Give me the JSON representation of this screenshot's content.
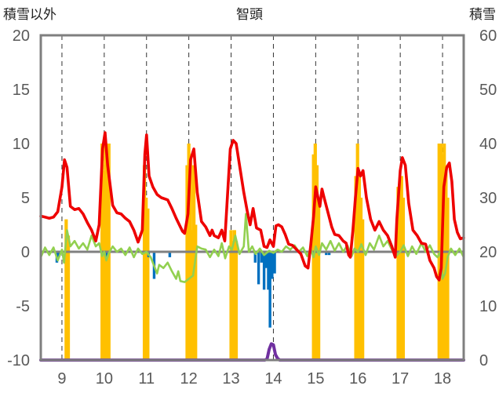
{
  "chart_data": {
    "type": "bar+line",
    "title": "智頭",
    "ylabel_left": "積雪以外",
    "ylabel_right": "積雪",
    "ylim_left": [
      -10,
      20
    ],
    "ylim_right": [
      0,
      60
    ],
    "yticks_left": [
      "20",
      "15",
      "10",
      "5",
      "0",
      "-5",
      "-10"
    ],
    "yticks_right": [
      "60",
      "50",
      "40",
      "30",
      "20",
      "10",
      "0"
    ],
    "xticks": [
      "9",
      "10",
      "11",
      "12",
      "13",
      "14",
      "15",
      "16",
      "17",
      "18"
    ],
    "xlim": [
      8.5,
      18.5
    ],
    "grid": "vertical dashed lines at each day",
    "colors": {
      "red_line": "#ee0000",
      "green_line": "#92d050",
      "yellow_bars": "#ffc000",
      "blue_bars": "#0070c0",
      "purple_line": "#7030a0",
      "zero_line": "#808080",
      "frame": "#7f7f7f"
    },
    "series": [
      {
        "axis": "left",
        "style": "line",
        "color": "#ee0000",
        "points": [
          [
            8.5,
            3.3
          ],
          [
            8.6,
            3.2
          ],
          [
            8.7,
            3.1
          ],
          [
            8.8,
            3.2
          ],
          [
            8.9,
            3.7
          ],
          [
            9.0,
            6.0
          ],
          [
            9.06,
            8.5
          ],
          [
            9.12,
            7.8
          ],
          [
            9.2,
            4.2
          ],
          [
            9.3,
            3.9
          ],
          [
            9.4,
            4.0
          ],
          [
            9.5,
            3.5
          ],
          [
            9.6,
            2.7
          ],
          [
            9.7,
            2.0
          ],
          [
            9.8,
            1.0
          ],
          [
            9.88,
            2.5
          ],
          [
            9.96,
            9.5
          ],
          [
            10.02,
            11.0
          ],
          [
            10.08,
            8.0
          ],
          [
            10.2,
            4.3
          ],
          [
            10.3,
            3.6
          ],
          [
            10.4,
            3.5
          ],
          [
            10.5,
            3.1
          ],
          [
            10.6,
            2.8
          ],
          [
            10.7,
            2.0
          ],
          [
            10.8,
            0.9
          ],
          [
            10.9,
            2.0
          ],
          [
            10.96,
            9.0
          ],
          [
            11.0,
            10.8
          ],
          [
            11.06,
            7.0
          ],
          [
            11.15,
            6.0
          ],
          [
            11.25,
            5.3
          ],
          [
            11.35,
            5.0
          ],
          [
            11.5,
            4.8
          ],
          [
            11.6,
            4.0
          ],
          [
            11.7,
            3.1
          ],
          [
            11.8,
            2.3
          ],
          [
            11.85,
            1.9
          ],
          [
            11.9,
            1.7
          ],
          [
            11.98,
            3.5
          ],
          [
            12.04,
            8.5
          ],
          [
            12.12,
            9.5
          ],
          [
            12.2,
            5.5
          ],
          [
            12.3,
            2.8
          ],
          [
            12.4,
            2.3
          ],
          [
            12.5,
            1.5
          ],
          [
            12.55,
            2.0
          ],
          [
            12.6,
            1.5
          ],
          [
            12.7,
            1.3
          ],
          [
            12.78,
            2.0
          ],
          [
            12.85,
            1.0
          ],
          [
            12.92,
            5.5
          ],
          [
            12.98,
            9.5
          ],
          [
            13.05,
            10.3
          ],
          [
            13.12,
            10.0
          ],
          [
            13.2,
            8.0
          ],
          [
            13.3,
            5.5
          ],
          [
            13.38,
            3.8
          ],
          [
            13.45,
            2.5
          ],
          [
            13.52,
            4.0
          ],
          [
            13.6,
            2.2
          ],
          [
            13.7,
            2.0
          ],
          [
            13.78,
            0.5
          ],
          [
            13.85,
            0.4
          ],
          [
            13.92,
            1.1
          ],
          [
            14.0,
            0.5
          ],
          [
            14.06,
            2.4
          ],
          [
            14.12,
            2.5
          ],
          [
            14.2,
            2.3
          ],
          [
            14.28,
            1.6
          ],
          [
            14.36,
            0.7
          ],
          [
            14.45,
            0.6
          ],
          [
            14.55,
            0.2
          ],
          [
            14.65,
            -0.2
          ],
          [
            14.75,
            -1.3
          ],
          [
            14.82,
            -1.5
          ],
          [
            14.88,
            0.5
          ],
          [
            14.95,
            3.3
          ],
          [
            15.0,
            6.0
          ],
          [
            15.1,
            4.2
          ],
          [
            15.15,
            5.8
          ],
          [
            15.2,
            5.0
          ],
          [
            15.3,
            3.5
          ],
          [
            15.38,
            2.3
          ],
          [
            15.45,
            1.6
          ],
          [
            15.55,
            1.5
          ],
          [
            15.65,
            1.0
          ],
          [
            15.72,
            0.8
          ],
          [
            15.78,
            -0.3
          ],
          [
            15.82,
            -0.5
          ],
          [
            15.88,
            2.0
          ],
          [
            15.94,
            5.0
          ],
          [
            16.0,
            7.7
          ],
          [
            16.06,
            7.0
          ],
          [
            16.12,
            7.5
          ],
          [
            16.2,
            5.0
          ],
          [
            16.3,
            3.0
          ],
          [
            16.4,
            2.0
          ],
          [
            16.5,
            2.8
          ],
          [
            16.6,
            2.0
          ],
          [
            16.7,
            1.5
          ],
          [
            16.8,
            0.5
          ],
          [
            16.88,
            -0.5
          ],
          [
            16.92,
            3.0
          ],
          [
            17.0,
            7.5
          ],
          [
            17.05,
            8.7
          ],
          [
            17.12,
            8.0
          ],
          [
            17.2,
            4.5
          ],
          [
            17.3,
            2.0
          ],
          [
            17.4,
            1.5
          ],
          [
            17.5,
            0.8
          ],
          [
            17.6,
            0.7
          ],
          [
            17.7,
            -0.8
          ],
          [
            17.8,
            -1.5
          ],
          [
            17.86,
            -2.3
          ],
          [
            17.92,
            -2.6
          ],
          [
            17.97,
            -1.5
          ],
          [
            18.03,
            6.0
          ],
          [
            18.1,
            7.8
          ],
          [
            18.16,
            8.2
          ],
          [
            18.22,
            6.5
          ],
          [
            18.28,
            3.0
          ],
          [
            18.35,
            1.8
          ],
          [
            18.42,
            1.2
          ],
          [
            18.5,
            1.3
          ]
        ]
      },
      {
        "axis": "left",
        "style": "line",
        "color": "#92d050",
        "points": [
          [
            8.5,
            -0.5
          ],
          [
            8.6,
            0.4
          ],
          [
            8.7,
            -0.3
          ],
          [
            8.8,
            0.4
          ],
          [
            8.9,
            -0.8
          ],
          [
            9.0,
            0.2
          ],
          [
            9.05,
            -1.0
          ],
          [
            9.12,
            2.0
          ],
          [
            9.2,
            0.5
          ],
          [
            9.3,
            1.0
          ],
          [
            9.4,
            0.3
          ],
          [
            9.5,
            0.8
          ],
          [
            9.6,
            0.2
          ],
          [
            9.7,
            1.5
          ],
          [
            9.8,
            0.5
          ],
          [
            9.88,
            0.8
          ],
          [
            9.95,
            -0.4
          ],
          [
            10.0,
            0.0
          ],
          [
            10.05,
            -0.8
          ],
          [
            10.1,
            -0.2
          ],
          [
            10.2,
            0.5
          ],
          [
            10.3,
            0.0
          ],
          [
            10.4,
            0.3
          ],
          [
            10.5,
            -0.3
          ],
          [
            10.6,
            0.4
          ],
          [
            10.7,
            -0.5
          ],
          [
            10.8,
            0.3
          ],
          [
            10.9,
            -0.2
          ],
          [
            11.0,
            0.0
          ],
          [
            11.1,
            -0.5
          ],
          [
            11.2,
            -1.5
          ],
          [
            11.25,
            -2.0
          ],
          [
            11.3,
            -1.2
          ],
          [
            11.4,
            -1.5
          ],
          [
            11.5,
            -1.0
          ],
          [
            11.6,
            -1.8
          ],
          [
            11.7,
            -2.5
          ],
          [
            11.75,
            -1.8
          ],
          [
            11.8,
            -2.7
          ],
          [
            11.9,
            -2.8
          ],
          [
            12.0,
            -2.5
          ],
          [
            12.1,
            -2.2
          ],
          [
            12.2,
            0.5
          ],
          [
            12.3,
            0.3
          ],
          [
            12.4,
            0.2
          ],
          [
            12.5,
            -0.5
          ],
          [
            12.6,
            0.2
          ],
          [
            12.7,
            -0.4
          ],
          [
            12.78,
            0.8
          ],
          [
            12.86,
            -0.6
          ],
          [
            12.95,
            0.5
          ],
          [
            13.02,
            0.2
          ],
          [
            13.1,
            1.5
          ],
          [
            13.2,
            -0.2
          ],
          [
            13.3,
            0.5
          ],
          [
            13.35,
            3.5
          ],
          [
            13.42,
            0.0
          ],
          [
            13.5,
            0.5
          ],
          [
            13.58,
            -0.2
          ],
          [
            13.68,
            0.3
          ],
          [
            13.78,
            -0.3
          ],
          [
            13.9,
            0.1
          ],
          [
            14.0,
            -0.1
          ],
          [
            14.1,
            0.2
          ],
          [
            14.2,
            0.0
          ],
          [
            14.3,
            0.5
          ],
          [
            14.4,
            0.2
          ],
          [
            14.5,
            0.6
          ],
          [
            14.6,
            0.0
          ],
          [
            14.7,
            0.4
          ],
          [
            14.8,
            -0.4
          ],
          [
            14.88,
            0.3
          ],
          [
            14.95,
            -0.5
          ],
          [
            15.0,
            0.5
          ],
          [
            15.08,
            -0.3
          ],
          [
            15.15,
            0.8
          ],
          [
            15.25,
            0.2
          ],
          [
            15.35,
            1.0
          ],
          [
            15.45,
            0.1
          ],
          [
            15.55,
            0.8
          ],
          [
            15.65,
            0.0
          ],
          [
            15.75,
            0.6
          ],
          [
            15.85,
            -0.4
          ],
          [
            15.92,
            0.3
          ],
          [
            16.0,
            0.0
          ],
          [
            16.08,
            0.7
          ],
          [
            16.18,
            -0.3
          ],
          [
            16.28,
            0.8
          ],
          [
            16.38,
            0.2
          ],
          [
            16.5,
            1.5
          ],
          [
            16.6,
            0.5
          ],
          [
            16.7,
            1.0
          ],
          [
            16.8,
            0.2
          ],
          [
            16.9,
            -0.4
          ],
          [
            17.0,
            0.0
          ],
          [
            17.08,
            0.6
          ],
          [
            17.18,
            -0.4
          ],
          [
            17.28,
            0.5
          ],
          [
            17.38,
            -0.2
          ],
          [
            17.5,
            0.8
          ],
          [
            17.6,
            0.0
          ],
          [
            17.7,
            0.6
          ],
          [
            17.8,
            -0.2
          ],
          [
            17.88,
            -0.5
          ],
          [
            17.95,
            0.0
          ],
          [
            18.0,
            -2.5
          ],
          [
            18.06,
            -2.0
          ],
          [
            18.12,
            -0.5
          ],
          [
            18.2,
            0.3
          ],
          [
            18.3,
            -0.3
          ],
          [
            18.4,
            0.3
          ],
          [
            18.5,
            -0.5
          ]
        ]
      },
      {
        "axis": "right",
        "style": "bar",
        "color": "#ffc000",
        "x": [
          9.1,
          9.15,
          9.95,
          9.99,
          10.03,
          10.07,
          10.11,
          10.95,
          10.99,
          11.03,
          11.96,
          12.0,
          12.04,
          12.08,
          12.12,
          12.16,
          13.0,
          13.04,
          13.08,
          13.12,
          14.95,
          14.99,
          15.03,
          15.07,
          15.95,
          15.99,
          16.03,
          16.07,
          16.11,
          16.95,
          16.99,
          17.03,
          17.07,
          17.92,
          17.96,
          18.0,
          18.04,
          18.08,
          18.12
        ],
        "values": [
          26,
          23,
          40,
          35,
          40,
          38,
          40,
          36,
          30,
          28,
          36,
          40,
          38,
          24,
          36,
          25,
          24,
          22,
          24,
          22,
          38,
          40,
          36,
          30,
          34,
          40,
          34,
          30,
          26,
          32,
          32,
          34,
          30,
          40,
          40,
          38,
          40,
          36,
          30
        ]
      },
      {
        "axis": "left",
        "style": "bar",
        "color": "#0070c0",
        "x": [
          8.88,
          8.92,
          10.07,
          11.05,
          11.18,
          11.55,
          13.57,
          13.65,
          13.72,
          13.78,
          13.83,
          13.88,
          13.92,
          13.97,
          14.03,
          15.25,
          15.32
        ],
        "values": [
          -1.0,
          -0.5,
          -0.5,
          -0.5,
          -2.5,
          -0.5,
          -1.0,
          -3.0,
          -1.0,
          -3.5,
          -1.5,
          -3.5,
          -7.0,
          -2.5,
          -2.0,
          -0.3,
          -0.3
        ]
      },
      {
        "axis": "right",
        "style": "line",
        "color": "#7030a0",
        "points": [
          [
            8.5,
            0.0
          ],
          [
            13.8,
            0.0
          ],
          [
            13.85,
            0.2
          ],
          [
            13.9,
            2.0
          ],
          [
            13.95,
            3.0
          ],
          [
            14.0,
            2.8
          ],
          [
            14.05,
            1.0
          ],
          [
            14.1,
            0.3
          ],
          [
            14.15,
            0.0
          ],
          [
            18.5,
            0.0
          ]
        ]
      }
    ]
  }
}
